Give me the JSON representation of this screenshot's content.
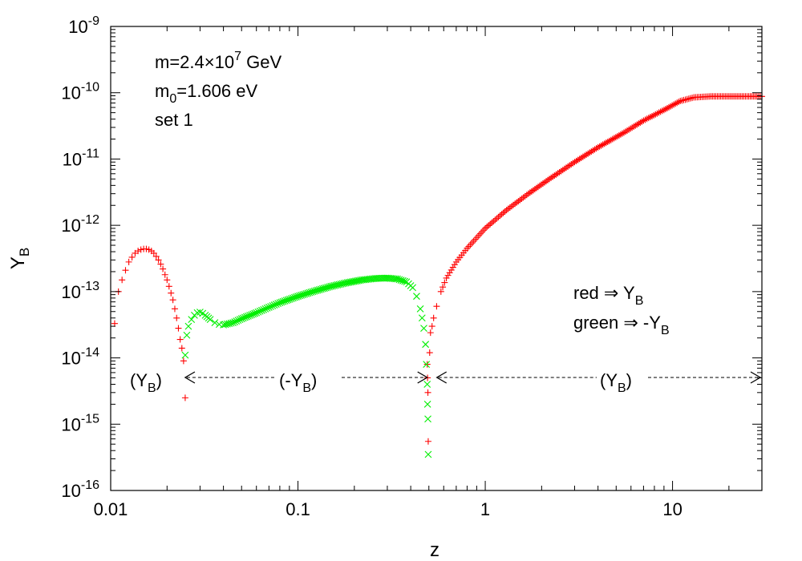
{
  "chart_data": {
    "type": "scatter",
    "title": "",
    "xlabel": "z",
    "ylabel": "Y",
    "ylabel_sub": "B",
    "xscale": "log",
    "yscale": "log",
    "xlim": [
      0.01,
      30
    ],
    "ylim": [
      1e-16,
      1e-09
    ],
    "x_ticks": [
      {
        "value": 0.01,
        "label": "0.01"
      },
      {
        "value": 0.1,
        "label": "0.1"
      },
      {
        "value": 1,
        "label": "1"
      },
      {
        "value": 10,
        "label": "10"
      }
    ],
    "y_ticks": [
      {
        "value": 1e-09,
        "base": "10",
        "exp": "-9"
      },
      {
        "value": 1e-10,
        "base": "10",
        "exp": "-10"
      },
      {
        "value": 1e-11,
        "base": "10",
        "exp": "-11"
      },
      {
        "value": 1e-12,
        "base": "10",
        "exp": "-12"
      },
      {
        "value": 1e-13,
        "base": "10",
        "exp": "-13"
      },
      {
        "value": 1e-14,
        "base": "10",
        "exp": "-14"
      },
      {
        "value": 1e-15,
        "base": "10",
        "exp": "-15"
      },
      {
        "value": 1e-16,
        "base": "10",
        "exp": "-16"
      }
    ],
    "series": [
      {
        "name": "red ⇒ Y_B",
        "color": "#ff0000",
        "marker": "+",
        "points": [
          [
            0.0105,
            3.3e-14
          ],
          [
            0.011,
            1e-13
          ],
          [
            0.0115,
            1.5e-13
          ],
          [
            0.012,
            2.1e-13
          ],
          [
            0.0125,
            2.8e-13
          ],
          [
            0.013,
            3.3e-13
          ],
          [
            0.0135,
            3.8e-13
          ],
          [
            0.014,
            4.1e-13
          ],
          [
            0.0145,
            4.3e-13
          ],
          [
            0.015,
            4.4e-13
          ],
          [
            0.0155,
            4.4e-13
          ],
          [
            0.016,
            4.3e-13
          ],
          [
            0.0165,
            4.1e-13
          ],
          [
            0.017,
            3.8e-13
          ],
          [
            0.0175,
            3.4e-13
          ],
          [
            0.018,
            3e-13
          ],
          [
            0.0185,
            2.6e-13
          ],
          [
            0.019,
            2.2e-13
          ],
          [
            0.0195,
            1.8e-13
          ],
          [
            0.02,
            1.5e-13
          ],
          [
            0.0205,
            1.2e-13
          ],
          [
            0.021,
            9.5e-14
          ],
          [
            0.0215,
            7.5e-14
          ],
          [
            0.022,
            5.5e-14
          ],
          [
            0.0225,
            4e-14
          ],
          [
            0.023,
            2.8e-14
          ],
          [
            0.0235,
            1.9e-14
          ],
          [
            0.024,
            1.4e-14
          ],
          [
            0.0245,
            9e-15
          ],
          [
            0.025,
            2.5e-15
          ],
          [
            0.49,
            8e-15
          ],
          [
            0.492,
            5e-15
          ],
          [
            0.494,
            3e-15
          ],
          [
            0.496,
            5.5e-16
          ],
          [
            0.505,
            1.2e-14
          ],
          [
            0.51,
            2.4e-14
          ],
          [
            0.52,
            3e-14
          ],
          [
            0.53,
            4e-14
          ],
          [
            0.55,
            6e-14
          ],
          [
            0.58,
            1e-13
          ],
          [
            0.62,
            1.6e-13
          ],
          [
            0.7,
            2.8e-13
          ],
          [
            0.8,
            4.5e-13
          ],
          [
            1.0,
            9e-13
          ],
          [
            1.3,
            1.7e-12
          ],
          [
            1.7,
            3e-12
          ],
          [
            2.2,
            5e-12
          ],
          [
            3.0,
            9e-12
          ],
          [
            4.0,
            1.5e-11
          ],
          [
            5.5,
            2.5e-11
          ],
          [
            7.0,
            3.8e-11
          ],
          [
            9.0,
            5.5e-11
          ],
          [
            11.0,
            7.5e-11
          ],
          [
            13.0,
            8.5e-11
          ],
          [
            16.0,
            8.8e-11
          ],
          [
            20.0,
            8.8e-11
          ],
          [
            25.0,
            8.8e-11
          ],
          [
            30.0,
            8.8e-11
          ]
        ]
      },
      {
        "name": "green ⇒ -Y_B",
        "color": "#00ee00",
        "marker": "x",
        "points": [
          [
            0.025,
            1.1e-14
          ],
          [
            0.0255,
            2.2e-14
          ],
          [
            0.026,
            3e-14
          ],
          [
            0.027,
            3.8e-14
          ],
          [
            0.028,
            4.4e-14
          ],
          [
            0.029,
            4.8e-14
          ],
          [
            0.03,
            4.9e-14
          ],
          [
            0.031,
            4.7e-14
          ],
          [
            0.032,
            4.4e-14
          ],
          [
            0.034,
            3.8e-14
          ],
          [
            0.036,
            3.4e-14
          ],
          [
            0.038,
            3.2e-14
          ],
          [
            0.04,
            3.15e-14
          ],
          [
            0.045,
            3.4e-14
          ],
          [
            0.05,
            3.9e-14
          ],
          [
            0.06,
            4.8e-14
          ],
          [
            0.07,
            5.8e-14
          ],
          [
            0.08,
            6.8e-14
          ],
          [
            0.1,
            8.5e-14
          ],
          [
            0.12,
            1e-13
          ],
          [
            0.15,
            1.2e-13
          ],
          [
            0.18,
            1.35e-13
          ],
          [
            0.22,
            1.5e-13
          ],
          [
            0.26,
            1.58e-13
          ],
          [
            0.3,
            1.6e-13
          ],
          [
            0.34,
            1.55e-13
          ],
          [
            0.38,
            1.4e-13
          ],
          [
            0.41,
            1.15e-13
          ],
          [
            0.43,
            8.5e-14
          ],
          [
            0.45,
            5.5e-14
          ],
          [
            0.46,
            4e-14
          ],
          [
            0.47,
            2.8e-14
          ],
          [
            0.48,
            1.6e-14
          ],
          [
            0.485,
            8e-15
          ],
          [
            0.49,
            4e-15
          ],
          [
            0.492,
            2e-15
          ],
          [
            0.494,
            1.2e-15
          ],
          [
            0.496,
            3.5e-16
          ]
        ]
      }
    ],
    "annotations": {
      "params": [
        {
          "id": "mass",
          "text": "m=2.4×10",
          "sup": "7",
          "suffix": " GeV"
        },
        {
          "id": "m0",
          "text": "m",
          "sub": "0",
          "suffix": "=1.606 eV"
        },
        {
          "id": "set",
          "text": "set 1"
        }
      ],
      "legend": [
        {
          "id": "red",
          "text": "red ⇒ Y",
          "sub": "B"
        },
        {
          "id": "green",
          "text": "green ⇒ -Y",
          "sub": "B"
        }
      ],
      "region_labels": [
        {
          "id": "left",
          "text": "(Y",
          "sub": "B",
          "suffix": ")"
        },
        {
          "id": "middle",
          "text": "(-Y",
          "sub": "B",
          "suffix": ")"
        },
        {
          "id": "right",
          "text": "(Y",
          "sub": "B",
          "suffix": ")"
        }
      ]
    },
    "legend_position": "right-middle",
    "grid": false
  }
}
